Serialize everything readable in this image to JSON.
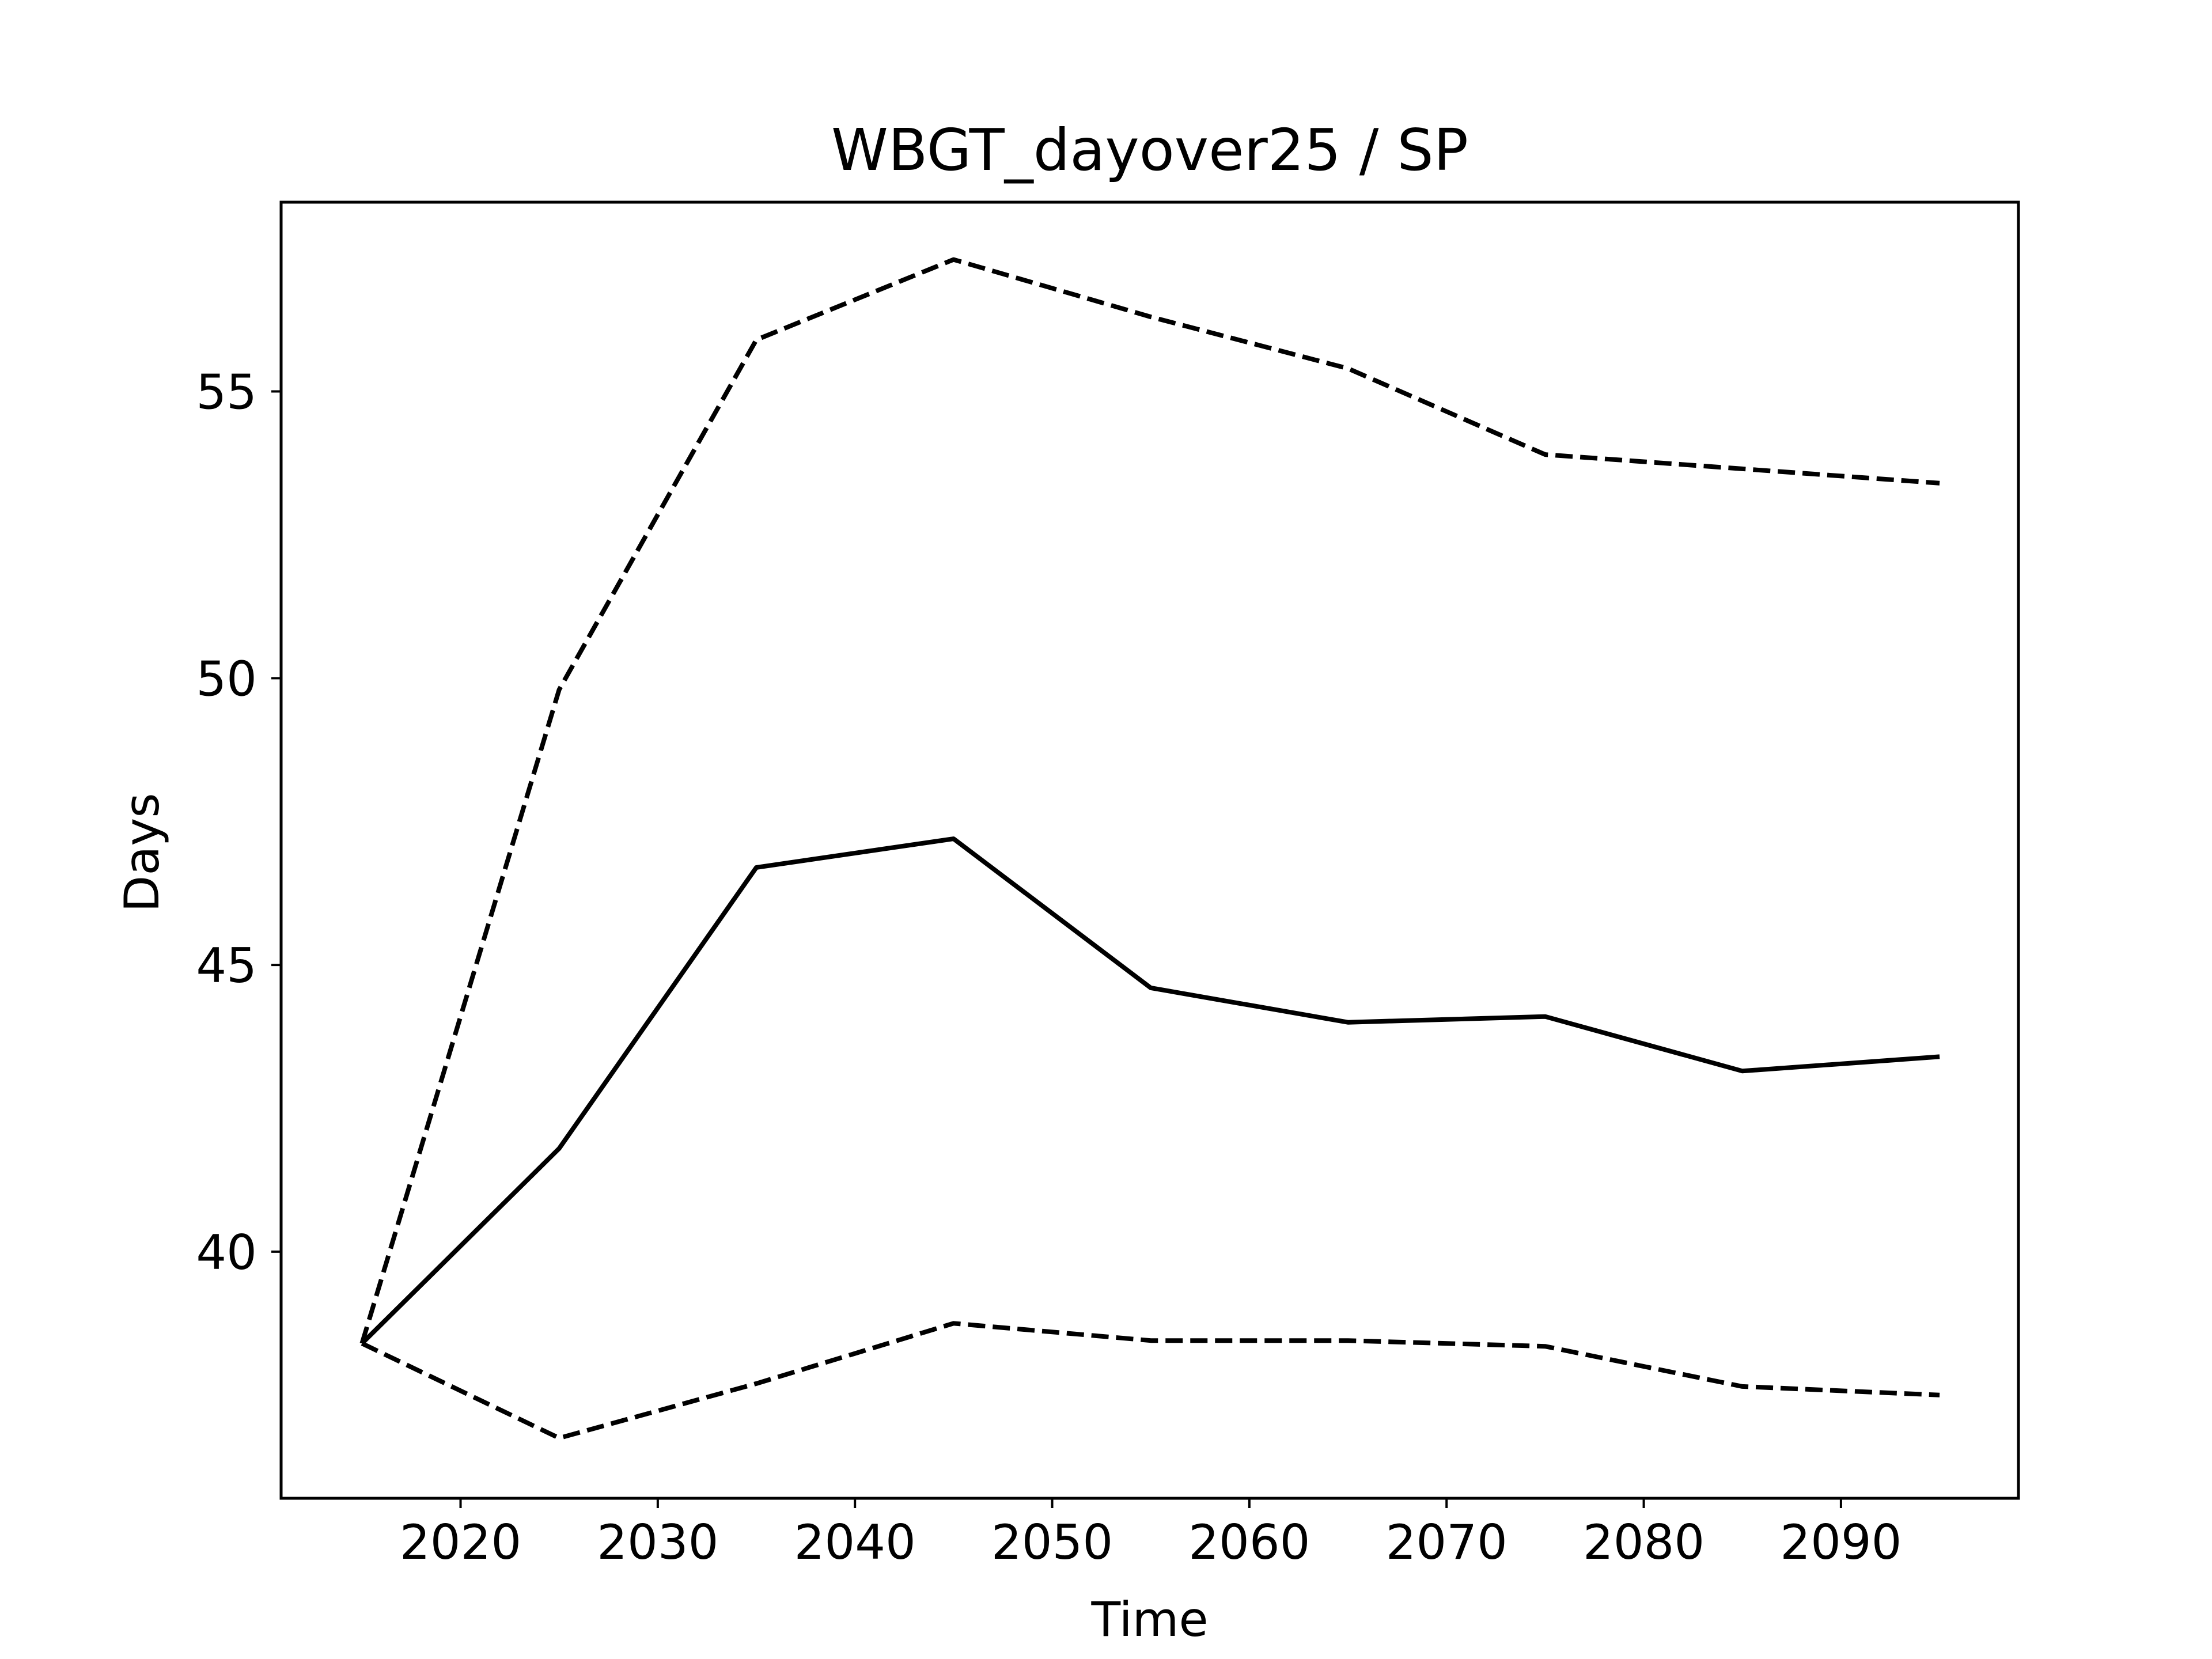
{
  "chart_data": {
    "type": "line",
    "title": "WBGT_dayover25 / SP",
    "xlabel": "Time",
    "ylabel": "Days",
    "xlim": [
      2010.9,
      2099
    ],
    "ylim": [
      35.7,
      58.3
    ],
    "x_ticks": [
      2020,
      2030,
      2040,
      2050,
      2060,
      2070,
      2080,
      2090
    ],
    "y_ticks": [
      40,
      45,
      50,
      55
    ],
    "grid": false,
    "legend": "none",
    "colors": {
      "line": "#000000",
      "frame": "#000000",
      "background": "#ffffff"
    },
    "series": [
      {
        "style": "solid",
        "x": [
          2015,
          2025,
          2035,
          2045,
          2055,
          2065,
          2075,
          2085,
          2095
        ],
        "y": [
          38.4,
          41.8,
          46.7,
          47.2,
          44.6,
          44.0,
          44.1,
          43.15,
          43.4
        ]
      },
      {
        "style": "dashed",
        "x": [
          2015,
          2025,
          2035,
          2045,
          2055,
          2065,
          2075,
          2085,
          2095
        ],
        "y": [
          38.4,
          49.8,
          55.9,
          57.3,
          56.3,
          55.4,
          53.9,
          53.65,
          53.4
        ]
      },
      {
        "style": "dashed",
        "x": [
          2015,
          2025,
          2035,
          2045,
          2055,
          2065,
          2075,
          2085,
          2095
        ],
        "y": [
          38.4,
          36.75,
          37.7,
          38.75,
          38.45,
          38.45,
          38.35,
          37.65,
          37.5
        ]
      }
    ]
  }
}
